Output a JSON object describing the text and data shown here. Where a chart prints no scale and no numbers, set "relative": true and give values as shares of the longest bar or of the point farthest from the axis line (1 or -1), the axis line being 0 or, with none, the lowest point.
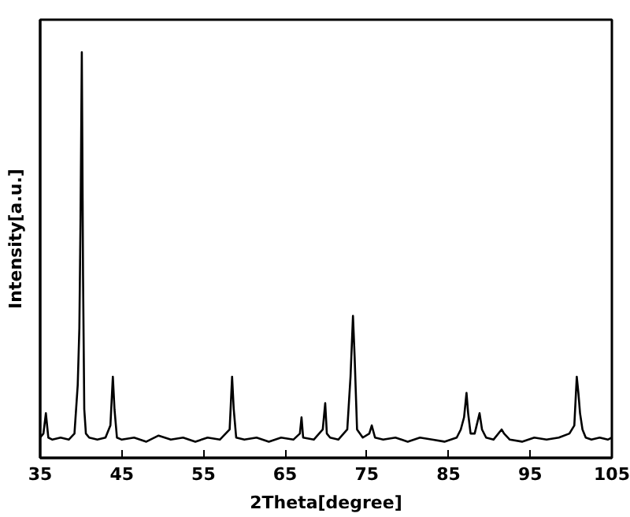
{
  "chart_data": {
    "type": "line",
    "relative": true,
    "xlabel": "2Theta[degree]",
    "ylabel": "Intensity[a.u.]",
    "xlim": [
      35,
      105
    ],
    "xticks": [
      35,
      45,
      55,
      65,
      75,
      85,
      95,
      105
    ],
    "grid": false,
    "marker": "none",
    "line_style": "solid",
    "series": [
      {
        "color": "#000000",
        "x": [
          35,
          35.4,
          35.7,
          36.0,
          36.5,
          37.5,
          38.5,
          39.2,
          39.6,
          39.8,
          39.95,
          40.1,
          40.25,
          40.4,
          40.6,
          41.0,
          42.0,
          43.0,
          43.6,
          43.9,
          44.1,
          44.4,
          45.0,
          46.5,
          48,
          49.5,
          51,
          52.5,
          54,
          55.5,
          57,
          58.2,
          58.5,
          58.7,
          59.0,
          60,
          61.5,
          63,
          64.5,
          66,
          66.8,
          67.0,
          67.2,
          68.5,
          69.6,
          69.9,
          70.1,
          70.5,
          71.5,
          72.6,
          73.0,
          73.3,
          73.5,
          73.8,
          74.5,
          75.3,
          75.6,
          76.0,
          77,
          78.5,
          80,
          81.5,
          83,
          84.5,
          86.0,
          86.5,
          86.9,
          87.2,
          87.4,
          87.7,
          88.2,
          88.8,
          89.1,
          89.6,
          90.5,
          91.5,
          91.8,
          92.5,
          94,
          95.5,
          97,
          98.5,
          99.8,
          100.4,
          100.7,
          100.9,
          101.1,
          101.4,
          101.8,
          102.5,
          103.5,
          104.5,
          105
        ],
        "values": [
          0.05,
          0.06,
          0.11,
          0.05,
          0.045,
          0.05,
          0.045,
          0.06,
          0.18,
          0.32,
          0.6,
          1.0,
          0.45,
          0.12,
          0.06,
          0.05,
          0.045,
          0.05,
          0.08,
          0.2,
          0.12,
          0.05,
          0.045,
          0.05,
          0.04,
          0.055,
          0.045,
          0.05,
          0.04,
          0.05,
          0.045,
          0.07,
          0.2,
          0.12,
          0.05,
          0.045,
          0.05,
          0.04,
          0.05,
          0.045,
          0.06,
          0.1,
          0.05,
          0.045,
          0.07,
          0.135,
          0.06,
          0.05,
          0.045,
          0.07,
          0.2,
          0.35,
          0.25,
          0.07,
          0.05,
          0.06,
          0.08,
          0.05,
          0.045,
          0.05,
          0.04,
          0.05,
          0.045,
          0.04,
          0.05,
          0.07,
          0.1,
          0.16,
          0.11,
          0.06,
          0.06,
          0.11,
          0.07,
          0.05,
          0.045,
          0.07,
          0.06,
          0.045,
          0.04,
          0.05,
          0.045,
          0.05,
          0.06,
          0.08,
          0.2,
          0.16,
          0.11,
          0.07,
          0.05,
          0.045,
          0.05,
          0.045,
          0.05
        ]
      }
    ]
  }
}
